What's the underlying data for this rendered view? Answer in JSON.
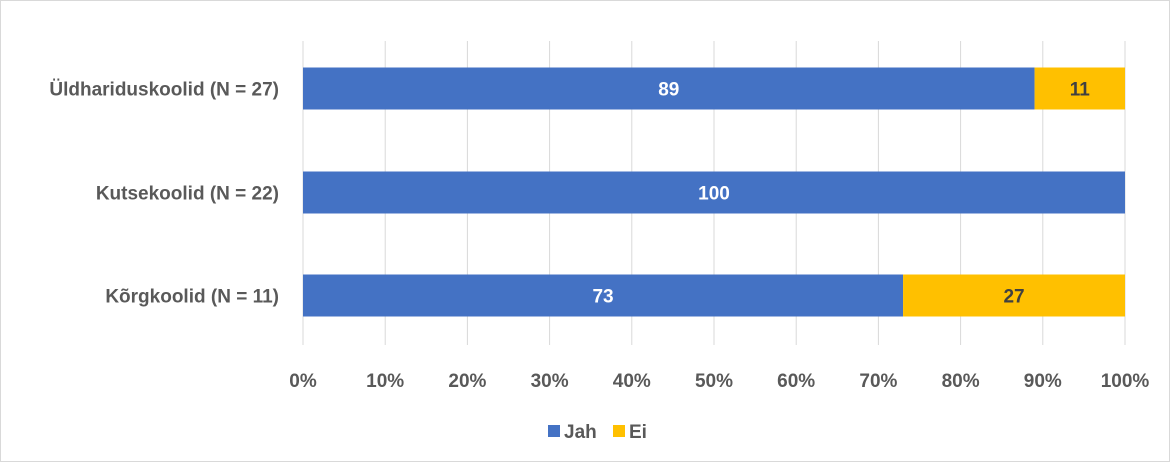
{
  "chart_data": {
    "type": "bar",
    "orientation": "horizontal",
    "stacked": "percent",
    "categories": [
      "Üldhariduskoolid (N = 27)",
      "Kutsekoolid (N = 22)",
      "Kõrgkoolid (N = 11)"
    ],
    "series": [
      {
        "name": "Jah",
        "color": "#4472C4",
        "values": [
          89,
          100,
          73
        ],
        "labels": [
          "89",
          "100",
          "73"
        ]
      },
      {
        "name": "Ei",
        "color": "#FFC000",
        "values": [
          11,
          0,
          27
        ],
        "labels": [
          "11",
          "",
          "27"
        ]
      }
    ],
    "x_ticks": [
      "0%",
      "10%",
      "20%",
      "30%",
      "40%",
      "50%",
      "60%",
      "70%",
      "80%",
      "90%",
      "100%"
    ],
    "xlim": [
      0,
      100
    ],
    "grid": "vertical",
    "legend": "bottom",
    "colors": {
      "text": "#595959",
      "grid": "#d9d9d9",
      "data_label": "#ffffff",
      "data_label_on_yellow": "#404040"
    }
  }
}
